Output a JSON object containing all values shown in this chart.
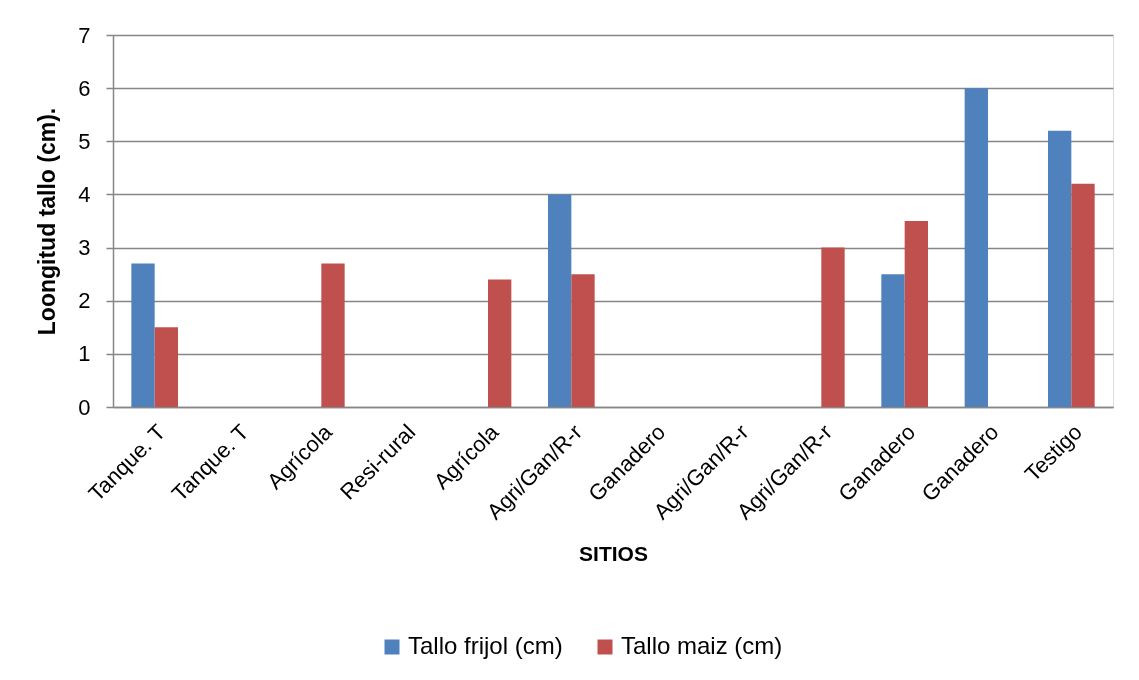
{
  "chart_data": {
    "type": "bar",
    "xlabel": "SITIOS",
    "ylabel": "Loongitud tallo (cm).",
    "categories": [
      "Tanque. T",
      "Tanque. T",
      "Agrícola",
      "Resi-rural",
      "Agrícola",
      "Agri/Gan/R-r",
      "Ganadero",
      "Agri/Gan/R-r",
      "Agri/Gan/R-r",
      "Ganadero",
      "Ganadero",
      "Testigo"
    ],
    "series": [
      {
        "name": "Tallo frijol (cm)",
        "color": "#4f81bd",
        "values": [
          2.7,
          null,
          null,
          null,
          null,
          4.0,
          null,
          null,
          null,
          2.5,
          6.0,
          5.2
        ]
      },
      {
        "name": "Tallo maiz (cm)",
        "color": "#c0504d",
        "values": [
          1.5,
          null,
          2.7,
          null,
          2.4,
          2.5,
          null,
          null,
          3.0,
          3.5,
          null,
          4.2
        ]
      }
    ],
    "ylim": [
      0,
      7
    ],
    "yticks": [
      0,
      1,
      2,
      3,
      4,
      5,
      6,
      7
    ],
    "grid": "y",
    "legend": "bottom"
  }
}
